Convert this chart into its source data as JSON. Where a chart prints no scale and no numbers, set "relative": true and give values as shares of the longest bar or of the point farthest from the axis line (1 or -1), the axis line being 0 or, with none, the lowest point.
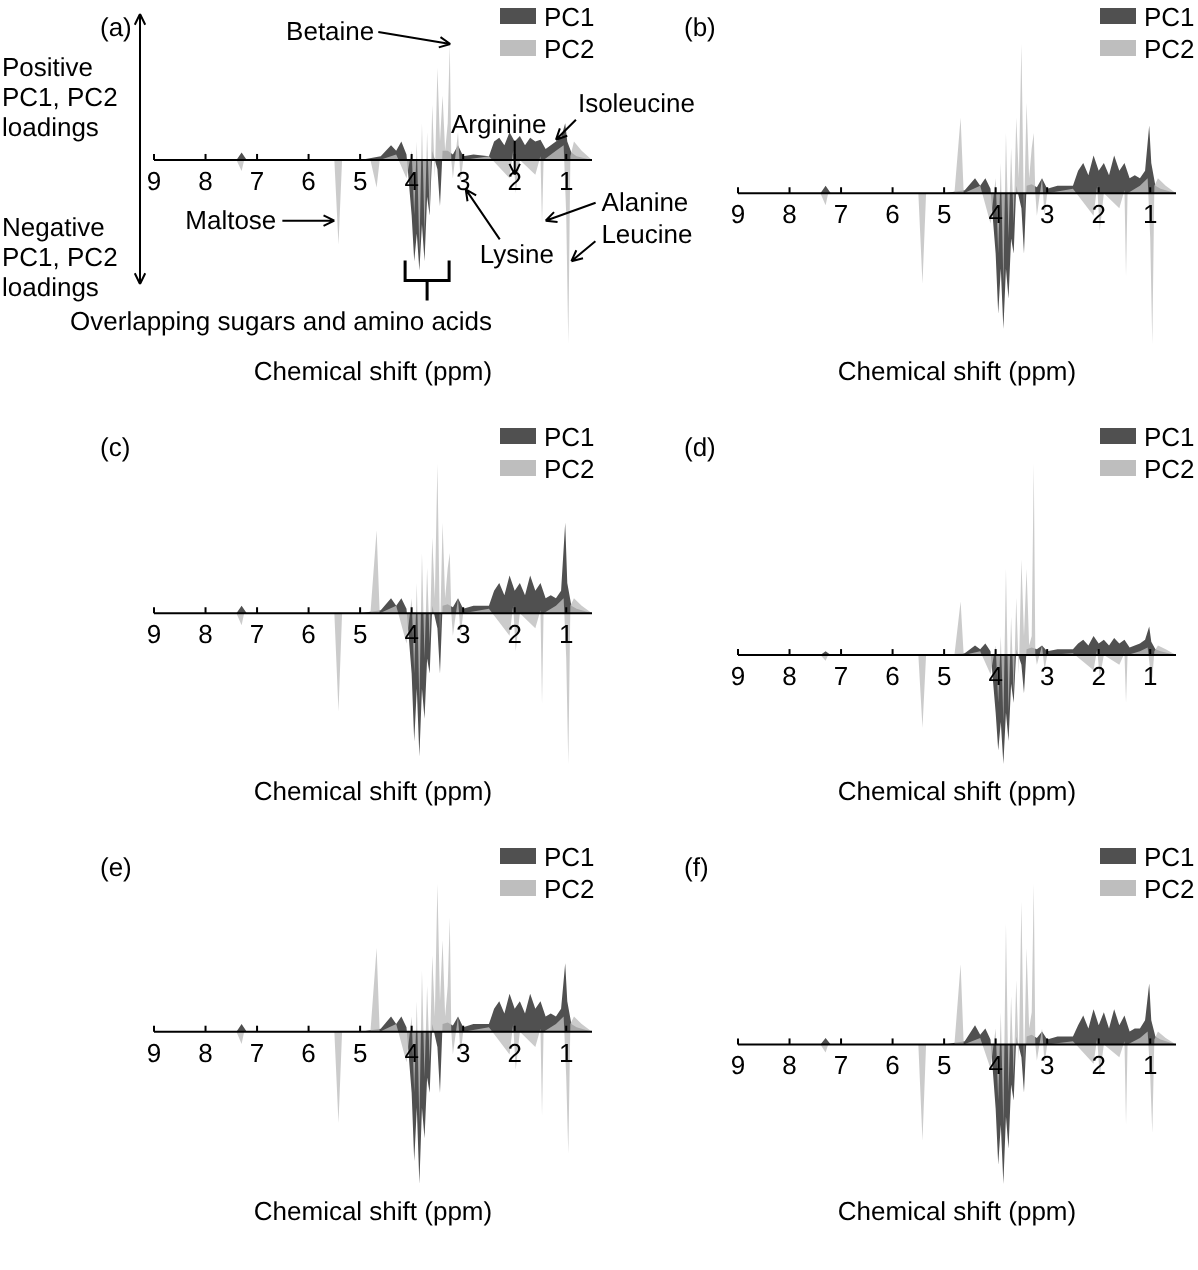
{
  "chart_data": [
    {
      "type": "area",
      "title": "(a)",
      "xlabel": "Chemical shift (ppm)",
      "relative": true,
      "xlim": [
        9,
        0.5
      ],
      "xticks": [
        9,
        8,
        7,
        6,
        5,
        4,
        3,
        2,
        1
      ],
      "legend": "top right",
      "series": [
        {
          "name": "PC1",
          "color": "#505050",
          "x": [
            9,
            7.4,
            7.3,
            7.2,
            5,
            4.6,
            4.4,
            4.3,
            4.2,
            4.1,
            4.0,
            3.95,
            3.9,
            3.85,
            3.8,
            3.75,
            3.7,
            3.65,
            3.6,
            3.5,
            3.45,
            3.4,
            3.3,
            3.2,
            3.1,
            3.0,
            2.8,
            2.5,
            2.4,
            2.3,
            2.2,
            2.1,
            2.0,
            1.9,
            1.8,
            1.7,
            1.6,
            1.5,
            1.4,
            1.3,
            1.2,
            1.1,
            1.02,
            0.98,
            0.9,
            0.8,
            0.5
          ],
          "values": [
            0,
            0,
            0.04,
            0,
            0,
            0.02,
            0.08,
            0.05,
            0.1,
            0.03,
            -0.3,
            -0.55,
            -0.4,
            -0.6,
            -0.35,
            -0.55,
            -0.2,
            -0.3,
            0.05,
            -0.05,
            -0.25,
            0.05,
            0.05,
            0.03,
            0.08,
            0.02,
            0.03,
            0.02,
            0.1,
            0.12,
            0.08,
            0.15,
            0.1,
            0.13,
            0.08,
            0.12,
            0.1,
            0.11,
            0.06,
            0.08,
            0.1,
            0.12,
            0.2,
            0.1,
            0.04,
            0.02,
            0
          ]
        },
        {
          "name": "PC2",
          "color": "#bebebe",
          "x": [
            9,
            7.4,
            7.3,
            7.25,
            7.2,
            5.5,
            5.42,
            5.35,
            4.8,
            4.68,
            4.62,
            4.3,
            4.1,
            4.0,
            3.95,
            3.9,
            3.85,
            3.8,
            3.75,
            3.7,
            3.65,
            3.6,
            3.55,
            3.5,
            3.45,
            3.4,
            3.35,
            3.3,
            3.26,
            3.23,
            3.2,
            3.1,
            3.05,
            3.0,
            2.5,
            2.1,
            2.03,
            1.98,
            1.9,
            1.6,
            1.5,
            1.47,
            1.44,
            1.2,
            1.05,
            1.0,
            0.96,
            0.92,
            0.85,
            0.7,
            0.5
          ],
          "values": [
            0,
            0,
            -0.06,
            0,
            0,
            0,
            -0.46,
            0,
            0,
            -0.15,
            0,
            0.03,
            -0.1,
            0.05,
            -0.3,
            0.1,
            -0.5,
            0.2,
            -0.4,
            0.15,
            -0.3,
            0.3,
            -0.1,
            0.5,
            0.1,
            0.35,
            0.05,
            0.2,
            0.63,
            0,
            -0.1,
            0.15,
            -0.12,
            0,
            0.02,
            -0.1,
            0.05,
            -0.18,
            0,
            -0.08,
            0.02,
            -0.35,
            0,
            0.05,
            0.08,
            -0.3,
            -1.0,
            0.02,
            0.1,
            0.05,
            0
          ]
        }
      ],
      "annotations": [
        "Positive PC1, PC2 loadings",
        "Negative PC1, PC2 loadings",
        {
          "text": "Betaine",
          "x": 3.25,
          "y": 0.63
        },
        {
          "text": "Arginine",
          "x": 2.0,
          "y": -0.08
        },
        {
          "text": "Isoleucine",
          "x": 1.2,
          "y": 0.11
        },
        {
          "text": "Alanine",
          "x": 1.4,
          "y": -0.33
        },
        {
          "text": "Leucine",
          "x": 0.9,
          "y": -0.55
        },
        {
          "text": "Maltose",
          "x": 5.5,
          "y": -0.33
        },
        {
          "text": "Lysine",
          "x": 2.95,
          "y": -0.16
        },
        {
          "text": "Overlapping sugars and amino acids",
          "x": 3.7,
          "y": -0.6
        }
      ]
    },
    {
      "type": "area",
      "title": "(b)",
      "xlabel": "Chemical shift (ppm)",
      "relative": true,
      "xlim": [
        9,
        0.5
      ],
      "xticks": [
        9,
        8,
        7,
        6,
        5,
        4,
        3,
        2,
        1
      ],
      "legend": "top right",
      "series": [
        {
          "name": "PC1",
          "color": "#505050",
          "x": [
            9,
            7.4,
            7.3,
            7.2,
            5,
            4.6,
            4.4,
            4.3,
            4.2,
            4.1,
            4.0,
            3.95,
            3.9,
            3.85,
            3.8,
            3.75,
            3.7,
            3.65,
            3.6,
            3.5,
            3.45,
            3.4,
            3.3,
            3.2,
            3.1,
            3.0,
            2.8,
            2.5,
            2.4,
            2.3,
            2.2,
            2.1,
            2.0,
            1.9,
            1.8,
            1.7,
            1.6,
            1.5,
            1.4,
            1.3,
            1.2,
            1.1,
            1.02,
            0.98,
            0.9,
            0.8,
            0.5
          ],
          "values": [
            0,
            0,
            0.05,
            0,
            0,
            0.02,
            0.1,
            0.05,
            0.1,
            0.03,
            -0.4,
            -0.8,
            -0.5,
            -0.9,
            -0.5,
            -0.7,
            -0.3,
            -0.4,
            0.05,
            -0.1,
            -0.4,
            0.05,
            0.06,
            0.04,
            0.1,
            0.03,
            0.05,
            0.05,
            0.15,
            0.2,
            0.12,
            0.25,
            0.15,
            0.2,
            0.12,
            0.25,
            0.15,
            0.2,
            0.1,
            0.12,
            0.1,
            0.15,
            0.45,
            0.2,
            0.05,
            0.03,
            0
          ]
        },
        {
          "name": "PC2",
          "color": "#bebebe",
          "x": [
            9,
            7.4,
            7.3,
            7.25,
            7.2,
            5.5,
            5.42,
            5.35,
            4.8,
            4.68,
            4.62,
            4.3,
            4.1,
            4.0,
            3.95,
            3.9,
            3.85,
            3.8,
            3.75,
            3.7,
            3.65,
            3.6,
            3.55,
            3.5,
            3.45,
            3.4,
            3.35,
            3.3,
            3.26,
            3.23,
            3.2,
            3.1,
            3.05,
            3.0,
            2.5,
            2.1,
            2.03,
            1.98,
            1.9,
            1.6,
            1.5,
            1.47,
            1.44,
            1.2,
            1.05,
            1.0,
            0.96,
            0.92,
            0.85,
            0.7,
            0.5
          ],
          "values": [
            0,
            0,
            -0.08,
            0,
            0,
            0,
            -0.6,
            0,
            0,
            0.5,
            0,
            0.05,
            -0.2,
            0.1,
            -0.4,
            0.2,
            -0.6,
            0.4,
            -0.3,
            0.3,
            -0.2,
            0.5,
            0.1,
            0.99,
            -0.15,
            0.6,
            0.1,
            0.3,
            0.4,
            0,
            -0.15,
            0.1,
            -0.15,
            0,
            0.03,
            -0.15,
            0.05,
            -0.25,
            0,
            -0.1,
            0.02,
            -0.55,
            0,
            0.05,
            0.1,
            -0.3,
            -1.0,
            0.05,
            0.1,
            0.05,
            0
          ]
        }
      ]
    },
    {
      "type": "area",
      "title": "(c)",
      "xlabel": "Chemical shift (ppm)",
      "relative": true,
      "xlim": [
        9,
        0.5
      ],
      "xticks": [
        9,
        8,
        7,
        6,
        5,
        4,
        3,
        2,
        1
      ],
      "legend": "top right",
      "series": [
        {
          "name": "PC1",
          "color": "#505050",
          "x": [
            9,
            7.4,
            7.3,
            7.2,
            5,
            4.6,
            4.4,
            4.3,
            4.2,
            4.1,
            4.0,
            3.95,
            3.9,
            3.85,
            3.8,
            3.75,
            3.7,
            3.65,
            3.6,
            3.5,
            3.45,
            3.4,
            3.3,
            3.2,
            3.1,
            3.0,
            2.8,
            2.5,
            2.4,
            2.3,
            2.2,
            2.1,
            2.0,
            1.9,
            1.8,
            1.7,
            1.6,
            1.5,
            1.4,
            1.3,
            1.2,
            1.1,
            1.02,
            0.98,
            0.9,
            0.8,
            0.5
          ],
          "values": [
            0,
            0,
            0.05,
            0,
            0,
            0.02,
            0.1,
            0.05,
            0.1,
            0.03,
            -0.4,
            -0.85,
            -0.5,
            -0.95,
            -0.5,
            -0.7,
            -0.3,
            -0.4,
            0.05,
            -0.1,
            -0.4,
            0.05,
            0.06,
            0.04,
            0.1,
            0.03,
            0.05,
            0.05,
            0.15,
            0.2,
            0.12,
            0.25,
            0.15,
            0.2,
            0.12,
            0.25,
            0.15,
            0.2,
            0.1,
            0.12,
            0.1,
            0.15,
            0.6,
            0.2,
            0.05,
            0.03,
            0
          ]
        },
        {
          "name": "PC2",
          "color": "#bebebe",
          "x": [
            9,
            7.4,
            7.3,
            7.25,
            7.2,
            5.5,
            5.42,
            5.35,
            4.8,
            4.68,
            4.62,
            4.3,
            4.1,
            4.0,
            3.95,
            3.9,
            3.85,
            3.8,
            3.75,
            3.7,
            3.65,
            3.6,
            3.55,
            3.5,
            3.45,
            3.4,
            3.35,
            3.3,
            3.26,
            3.23,
            3.2,
            3.1,
            3.05,
            3.0,
            2.5,
            2.1,
            2.03,
            1.98,
            1.9,
            1.6,
            1.5,
            1.47,
            1.44,
            1.2,
            1.05,
            1.0,
            0.96,
            0.92,
            0.85,
            0.7,
            0.5
          ],
          "values": [
            0,
            0,
            -0.08,
            0,
            0,
            0,
            -0.65,
            0,
            0,
            0.55,
            0,
            0.05,
            -0.2,
            0.1,
            -0.4,
            0.2,
            -0.6,
            0.4,
            -0.3,
            0.3,
            -0.2,
            0.5,
            0.1,
            0.99,
            -0.15,
            0.6,
            0.1,
            0.3,
            0.4,
            0,
            -0.15,
            0.1,
            -0.15,
            0,
            0.03,
            -0.15,
            0.05,
            -0.25,
            0,
            -0.1,
            0.02,
            -0.6,
            0,
            0.05,
            0.1,
            -0.3,
            -1.0,
            0.05,
            0.1,
            0.05,
            0
          ]
        }
      ]
    },
    {
      "type": "area",
      "title": "(d)",
      "xlabel": "Chemical shift (ppm)",
      "relative": true,
      "xlim": [
        9,
        0.5
      ],
      "xticks": [
        9,
        8,
        7,
        6,
        5,
        4,
        3,
        2,
        1
      ],
      "legend": "top right",
      "series": [
        {
          "name": "PC1",
          "color": "#505050",
          "x": [
            9,
            7.4,
            7.3,
            7.2,
            5,
            4.6,
            4.4,
            4.3,
            4.2,
            4.1,
            4.0,
            3.95,
            3.9,
            3.85,
            3.8,
            3.75,
            3.7,
            3.65,
            3.6,
            3.5,
            3.45,
            3.4,
            3.3,
            3.2,
            3.1,
            3.0,
            2.8,
            2.5,
            2.4,
            2.3,
            2.2,
            2.1,
            2.0,
            1.9,
            1.8,
            1.7,
            1.6,
            1.5,
            1.4,
            1.3,
            1.2,
            1.1,
            1.02,
            0.98,
            0.9,
            0.8,
            0.5
          ],
          "values": [
            0,
            0,
            0.02,
            0,
            0,
            0.01,
            0.05,
            0.03,
            0.06,
            0.02,
            -0.3,
            -0.5,
            -0.35,
            -0.57,
            -0.3,
            -0.45,
            -0.15,
            -0.25,
            0.03,
            -0.05,
            -0.2,
            0.03,
            0.04,
            0.03,
            0.05,
            0.02,
            0.03,
            0.03,
            0.06,
            0.08,
            0.05,
            0.1,
            0.06,
            0.08,
            0.05,
            0.09,
            0.06,
            0.08,
            0.04,
            0.05,
            0.06,
            0.08,
            0.15,
            0.07,
            0.03,
            0.02,
            0
          ]
        },
        {
          "name": "PC2",
          "color": "#bebebe",
          "x": [
            9,
            7.4,
            7.3,
            7.25,
            7.2,
            5.5,
            5.42,
            5.35,
            4.8,
            4.68,
            4.62,
            4.3,
            4.1,
            4.0,
            3.95,
            3.9,
            3.85,
            3.8,
            3.75,
            3.7,
            3.65,
            3.6,
            3.55,
            3.5,
            3.45,
            3.4,
            3.35,
            3.3,
            3.26,
            3.23,
            3.2,
            3.1,
            3.05,
            3.0,
            2.5,
            2.1,
            2.03,
            1.98,
            1.9,
            1.6,
            1.5,
            1.47,
            1.44,
            1.2,
            1.05,
            1.0,
            0.96,
            0.92,
            0.85,
            0.7,
            0.5
          ],
          "values": [
            0,
            0,
            -0.03,
            0,
            0,
            0,
            -0.38,
            0,
            0,
            0.28,
            0,
            0.02,
            -0.1,
            0.05,
            -0.25,
            0.1,
            -0.35,
            0.45,
            -0.3,
            0.2,
            -0.2,
            0.3,
            -0.1,
            0.5,
            0.1,
            0.45,
            0.05,
            0.1,
            1.0,
            0,
            -0.05,
            0.05,
            -0.08,
            0,
            0.01,
            -0.08,
            0.03,
            -0.12,
            0,
            -0.05,
            0.01,
            -0.25,
            0,
            0.02,
            0.04,
            -0.08,
            -0.12,
            0.02,
            0.05,
            0.03,
            0
          ]
        }
      ]
    },
    {
      "type": "area",
      "title": "(e)",
      "xlabel": "Chemical shift (ppm)",
      "relative": true,
      "xlim": [
        9,
        0.5
      ],
      "xticks": [
        9,
        8,
        7,
        6,
        5,
        4,
        3,
        2,
        1
      ],
      "legend": "top right",
      "series": [
        {
          "name": "PC1",
          "color": "#505050",
          "x": [
            9,
            7.4,
            7.3,
            7.2,
            5,
            4.6,
            4.4,
            4.3,
            4.2,
            4.1,
            4.0,
            3.95,
            3.9,
            3.85,
            3.8,
            3.75,
            3.7,
            3.65,
            3.6,
            3.5,
            3.45,
            3.4,
            3.3,
            3.2,
            3.1,
            3.0,
            2.8,
            2.5,
            2.4,
            2.3,
            2.2,
            2.1,
            2.0,
            1.9,
            1.8,
            1.7,
            1.6,
            1.5,
            1.4,
            1.3,
            1.2,
            1.1,
            1.02,
            0.98,
            0.9,
            0.8,
            0.5
          ],
          "values": [
            0,
            0,
            0.05,
            0,
            0,
            0.02,
            0.1,
            0.05,
            0.1,
            0.03,
            -0.4,
            -0.85,
            -0.5,
            -1.0,
            -0.5,
            -0.7,
            -0.3,
            -0.4,
            0.05,
            -0.1,
            -0.4,
            0.05,
            0.06,
            0.04,
            0.1,
            0.03,
            0.05,
            0.05,
            0.15,
            0.2,
            0.12,
            0.25,
            0.15,
            0.2,
            0.12,
            0.25,
            0.15,
            0.2,
            0.1,
            0.12,
            0.1,
            0.15,
            0.45,
            0.2,
            0.05,
            0.03,
            0
          ]
        },
        {
          "name": "PC2",
          "color": "#bebebe",
          "x": [
            9,
            7.4,
            7.3,
            7.25,
            7.2,
            5.5,
            5.42,
            5.35,
            4.8,
            4.68,
            4.62,
            4.3,
            4.1,
            4.0,
            3.95,
            3.9,
            3.85,
            3.8,
            3.75,
            3.7,
            3.65,
            3.6,
            3.55,
            3.5,
            3.45,
            3.4,
            3.35,
            3.3,
            3.26,
            3.23,
            3.2,
            3.1,
            3.05,
            3.0,
            2.5,
            2.1,
            2.03,
            1.98,
            1.9,
            1.6,
            1.5,
            1.47,
            1.44,
            1.2,
            1.05,
            1.0,
            0.96,
            0.92,
            0.85,
            0.7,
            0.5
          ],
          "values": [
            0,
            0,
            -0.08,
            0,
            0,
            0,
            -0.6,
            0,
            0,
            0.55,
            0,
            0.05,
            -0.2,
            0.1,
            -0.4,
            0.2,
            -0.6,
            0.4,
            -0.3,
            0.3,
            -0.2,
            0.5,
            0.1,
            0.97,
            0.2,
            0.6,
            0.1,
            0.3,
            0.75,
            0,
            -0.15,
            0.1,
            -0.15,
            0,
            0.03,
            -0.15,
            0.05,
            -0.25,
            0,
            -0.1,
            0.02,
            -0.55,
            0,
            0.05,
            0.1,
            -0.3,
            -0.8,
            0.05,
            0.1,
            0.05,
            0
          ]
        }
      ]
    },
    {
      "type": "area",
      "title": "(f)",
      "xlabel": "Chemical shift (ppm)",
      "relative": true,
      "xlim": [
        9,
        0.5
      ],
      "xticks": [
        9,
        8,
        7,
        6,
        5,
        4,
        3,
        2,
        1
      ],
      "legend": "top right",
      "series": [
        {
          "name": "PC1",
          "color": "#505050",
          "x": [
            9,
            7.4,
            7.3,
            7.2,
            5,
            4.6,
            4.4,
            4.3,
            4.2,
            4.1,
            4.0,
            3.95,
            3.9,
            3.85,
            3.8,
            3.75,
            3.7,
            3.65,
            3.6,
            3.5,
            3.45,
            3.4,
            3.3,
            3.2,
            3.1,
            3.0,
            2.8,
            2.5,
            2.4,
            2.3,
            2.2,
            2.1,
            2.0,
            1.9,
            1.8,
            1.7,
            1.6,
            1.5,
            1.4,
            1.3,
            1.2,
            1.1,
            1.02,
            0.98,
            0.9,
            0.8,
            0.5
          ],
          "values": [
            0,
            0,
            0.04,
            0,
            0,
            0.02,
            0.12,
            0.06,
            0.1,
            0.03,
            -0.4,
            -0.75,
            -0.5,
            -0.87,
            -0.45,
            -0.65,
            -0.25,
            -0.35,
            0.05,
            -0.08,
            -0.3,
            0.05,
            0.06,
            0.04,
            0.08,
            0.03,
            0.05,
            0.05,
            0.12,
            0.18,
            0.1,
            0.22,
            0.12,
            0.2,
            0.1,
            0.22,
            0.12,
            0.18,
            0.08,
            0.1,
            0.1,
            0.15,
            0.38,
            0.15,
            0.05,
            0.03,
            0
          ]
        },
        {
          "name": "PC2",
          "color": "#bebebe",
          "x": [
            9,
            7.4,
            7.3,
            7.25,
            7.2,
            5.5,
            5.42,
            5.35,
            4.8,
            4.68,
            4.62,
            4.3,
            4.1,
            4.0,
            3.95,
            3.9,
            3.85,
            3.8,
            3.75,
            3.7,
            3.65,
            3.6,
            3.55,
            3.5,
            3.45,
            3.4,
            3.35,
            3.3,
            3.26,
            3.23,
            3.2,
            3.1,
            3.05,
            3.0,
            2.5,
            2.1,
            2.03,
            1.98,
            1.9,
            1.6,
            1.5,
            1.47,
            1.44,
            1.2,
            1.05,
            1.0,
            0.96,
            0.92,
            0.85,
            0.7,
            0.5
          ],
          "values": [
            0,
            0,
            -0.05,
            0,
            0,
            0,
            -0.6,
            0,
            0,
            0.5,
            0,
            0.04,
            -0.15,
            0.1,
            -0.35,
            0.2,
            -0.5,
            0.75,
            -0.3,
            0.3,
            -0.2,
            0.4,
            -0.1,
            0.89,
            -0.15,
            0.6,
            0.1,
            0.2,
            1.0,
            0,
            -0.1,
            0.1,
            -0.12,
            0,
            0.02,
            -0.12,
            0.04,
            -0.2,
            0,
            -0.08,
            0.02,
            -0.5,
            0,
            0.04,
            0.08,
            -0.2,
            -0.55,
            0.03,
            0.08,
            0.04,
            0
          ]
        }
      ]
    }
  ]
}
